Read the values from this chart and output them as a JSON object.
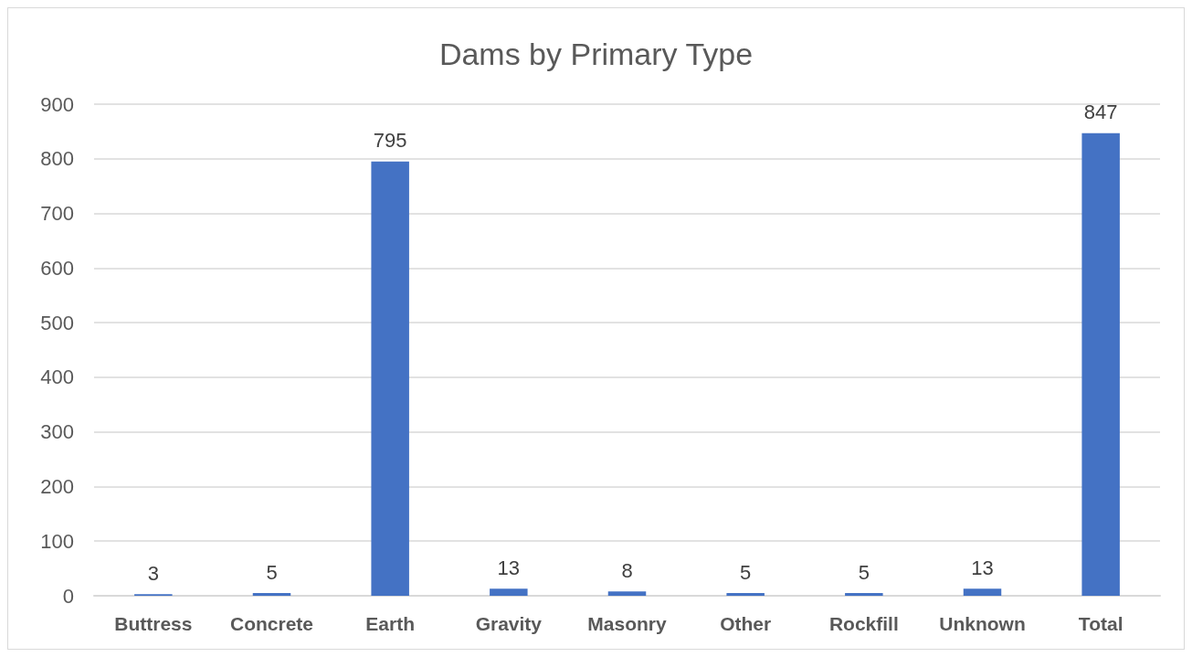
{
  "chart_data": {
    "type": "bar",
    "title": "Dams by Primary Type",
    "categories": [
      "Buttress",
      "Concrete",
      "Earth",
      "Gravity",
      "Masonry",
      "Other",
      "Rockfill",
      "Unknown",
      "Total"
    ],
    "values": [
      3,
      5,
      795,
      13,
      8,
      5,
      5,
      13,
      847
    ],
    "color": "#4472c4",
    "ylim": [
      0,
      900
    ],
    "yticks": [
      0,
      100,
      200,
      300,
      400,
      500,
      600,
      700,
      800,
      900
    ],
    "grid": "y",
    "data_labels": true
  }
}
